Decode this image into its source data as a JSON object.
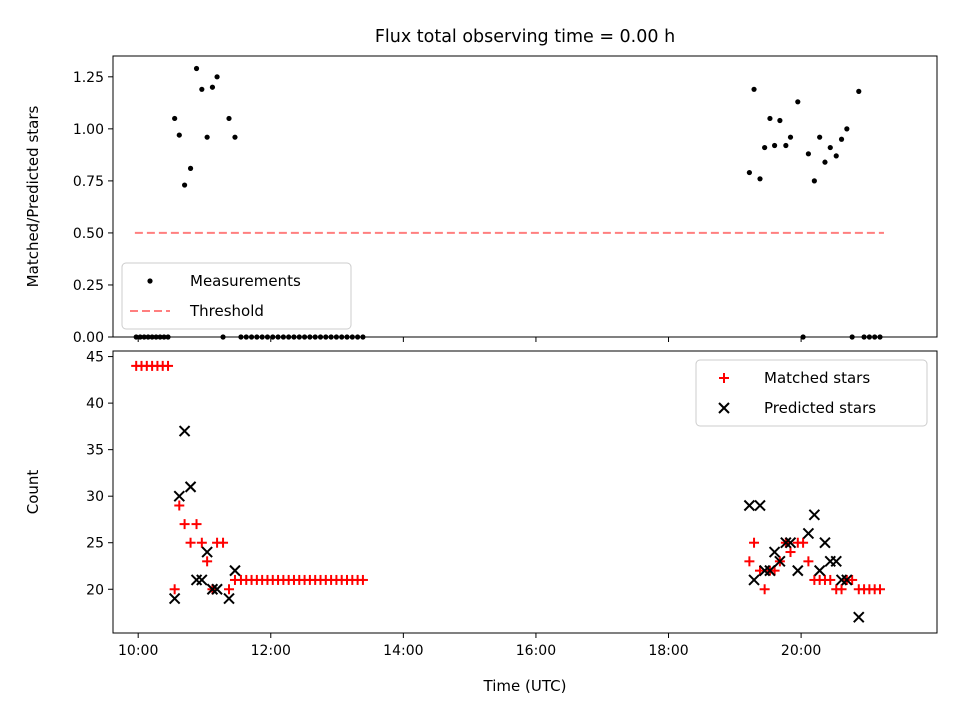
{
  "chart_data": {
    "type": "scatter",
    "title": "Flux total observing time = 0.00 h",
    "xlabel": "Time (UTC)",
    "x_unit": "hours (UTC)",
    "x_ticks": [
      "10:00",
      "12:00",
      "14:00",
      "16:00",
      "18:00",
      "20:00"
    ],
    "x_tick_values": [
      10,
      12,
      14,
      16,
      18,
      20
    ],
    "xlim": [
      9.62,
      22.05
    ],
    "panels": [
      {
        "name": "ratio",
        "ylabel": "Matched/Predicted stars",
        "ylim": [
          0,
          1.35
        ],
        "y_ticks": [
          "0.00",
          "0.25",
          "0.50",
          "0.75",
          "1.00",
          "1.25"
        ],
        "y_tick_values": [
          0,
          0.25,
          0.5,
          0.75,
          1.0,
          1.25
        ],
        "legend": {
          "position": "lower-left",
          "entries": [
            "Measurements",
            "Threshold"
          ]
        },
        "series": [
          {
            "name": "Measurements",
            "marker": "dot",
            "color": "#000000",
            "points": [
              [
                9.97,
                0
              ],
              [
                10.03,
                0
              ],
              [
                10.09,
                0
              ],
              [
                10.15,
                0
              ],
              [
                10.21,
                0
              ],
              [
                10.27,
                0
              ],
              [
                10.33,
                0
              ],
              [
                10.39,
                0
              ],
              [
                10.45,
                0
              ],
              [
                10.55,
                1.05
              ],
              [
                10.62,
                0.97
              ],
              [
                10.7,
                0.73
              ],
              [
                10.79,
                0.81
              ],
              [
                10.88,
                1.29
              ],
              [
                10.96,
                1.19
              ],
              [
                11.04,
                0.96
              ],
              [
                11.12,
                1.2
              ],
              [
                11.19,
                1.25
              ],
              [
                11.28,
                0
              ],
              [
                11.37,
                1.05
              ],
              [
                11.46,
                0.96
              ],
              [
                11.55,
                0
              ],
              [
                11.63,
                0
              ],
              [
                11.71,
                0
              ],
              [
                11.79,
                0
              ],
              [
                11.87,
                0
              ],
              [
                11.95,
                0
              ],
              [
                12.03,
                0
              ],
              [
                12.11,
                0
              ],
              [
                12.19,
                0
              ],
              [
                12.27,
                0
              ],
              [
                12.35,
                0
              ],
              [
                12.43,
                0
              ],
              [
                12.51,
                0
              ],
              [
                12.59,
                0
              ],
              [
                12.67,
                0
              ],
              [
                12.75,
                0
              ],
              [
                12.83,
                0
              ],
              [
                12.91,
                0
              ],
              [
                12.99,
                0
              ],
              [
                13.07,
                0
              ],
              [
                13.15,
                0
              ],
              [
                13.23,
                0
              ],
              [
                13.31,
                0
              ],
              [
                13.39,
                0
              ],
              [
                19.22,
                0.79
              ],
              [
                19.29,
                1.19
              ],
              [
                19.38,
                0.76
              ],
              [
                19.45,
                0.91
              ],
              [
                19.53,
                1.05
              ],
              [
                19.6,
                0.92
              ],
              [
                19.68,
                1.04
              ],
              [
                19.77,
                0.92
              ],
              [
                19.84,
                0.96
              ],
              [
                19.95,
                1.13
              ],
              [
                20.03,
                0
              ],
              [
                20.11,
                0.88
              ],
              [
                20.2,
                0.75
              ],
              [
                20.28,
                0.96
              ],
              [
                20.36,
                0.84
              ],
              [
                20.44,
                0.91
              ],
              [
                20.53,
                0.87
              ],
              [
                20.61,
                0.95
              ],
              [
                20.69,
                1.0
              ],
              [
                20.77,
                0
              ],
              [
                20.87,
                1.18
              ],
              [
                20.95,
                0
              ],
              [
                21.03,
                0
              ],
              [
                21.11,
                0
              ],
              [
                21.19,
                0
              ]
            ]
          },
          {
            "name": "Threshold",
            "style": "dashed",
            "color": "#ff7f7f",
            "x": [
              9.95,
              21.25
            ],
            "y": [
              0.5,
              0.5
            ]
          }
        ]
      },
      {
        "name": "counts",
        "ylabel": "Count",
        "ylim": [
          15.3,
          45.6
        ],
        "y_ticks": [
          "20",
          "25",
          "30",
          "35",
          "40",
          "45"
        ],
        "y_tick_values": [
          20,
          25,
          30,
          35,
          40,
          45
        ],
        "legend": {
          "position": "upper-right",
          "entries": [
            "Matched stars",
            "Predicted stars"
          ]
        },
        "series": [
          {
            "name": "Matched stars",
            "marker": "plus",
            "color": "#ff0000",
            "points": [
              [
                9.97,
                44
              ],
              [
                10.05,
                44
              ],
              [
                10.13,
                44
              ],
              [
                10.21,
                44
              ],
              [
                10.29,
                44
              ],
              [
                10.37,
                44
              ],
              [
                10.45,
                44
              ],
              [
                10.55,
                20
              ],
              [
                10.62,
                29
              ],
              [
                10.7,
                27
              ],
              [
                10.79,
                25
              ],
              [
                10.88,
                27
              ],
              [
                10.96,
                25
              ],
              [
                11.04,
                23
              ],
              [
                11.12,
                20
              ],
              [
                11.19,
                25
              ],
              [
                11.28,
                25
              ],
              [
                11.37,
                20
              ],
              [
                11.46,
                21
              ],
              [
                11.55,
                21
              ],
              [
                11.63,
                21
              ],
              [
                11.71,
                21
              ],
              [
                11.79,
                21
              ],
              [
                11.87,
                21
              ],
              [
                11.95,
                21
              ],
              [
                12.03,
                21
              ],
              [
                12.11,
                21
              ],
              [
                12.19,
                21
              ],
              [
                12.27,
                21
              ],
              [
                12.35,
                21
              ],
              [
                12.43,
                21
              ],
              [
                12.51,
                21
              ],
              [
                12.59,
                21
              ],
              [
                12.67,
                21
              ],
              [
                12.75,
                21
              ],
              [
                12.83,
                21
              ],
              [
                12.91,
                21
              ],
              [
                12.99,
                21
              ],
              [
                13.07,
                21
              ],
              [
                13.15,
                21
              ],
              [
                13.23,
                21
              ],
              [
                13.31,
                21
              ],
              [
                13.39,
                21
              ],
              [
                19.22,
                23
              ],
              [
                19.29,
                25
              ],
              [
                19.38,
                22
              ],
              [
                19.45,
                20
              ],
              [
                19.53,
                22
              ],
              [
                19.6,
                22
              ],
              [
                19.68,
                23
              ],
              [
                19.77,
                25
              ],
              [
                19.84,
                24
              ],
              [
                19.95,
                25
              ],
              [
                20.03,
                25
              ],
              [
                20.11,
                23
              ],
              [
                20.2,
                21
              ],
              [
                20.28,
                21
              ],
              [
                20.36,
                21
              ],
              [
                20.44,
                21
              ],
              [
                20.53,
                20
              ],
              [
                20.61,
                20
              ],
              [
                20.69,
                21
              ],
              [
                20.77,
                21
              ],
              [
                20.87,
                20
              ],
              [
                20.95,
                20
              ],
              [
                21.03,
                20
              ],
              [
                21.11,
                20
              ],
              [
                21.19,
                20
              ]
            ]
          },
          {
            "name": "Predicted stars",
            "marker": "x",
            "color": "#000000",
            "points": [
              [
                10.55,
                19
              ],
              [
                10.62,
                30
              ],
              [
                10.7,
                37
              ],
              [
                10.79,
                31
              ],
              [
                10.88,
                21
              ],
              [
                10.96,
                21
              ],
              [
                11.04,
                24
              ],
              [
                11.12,
                20
              ],
              [
                11.19,
                20
              ],
              [
                11.37,
                19
              ],
              [
                11.46,
                22
              ],
              [
                19.22,
                29
              ],
              [
                19.29,
                21
              ],
              [
                19.38,
                29
              ],
              [
                19.45,
                22
              ],
              [
                19.53,
                22
              ],
              [
                19.6,
                24
              ],
              [
                19.68,
                23
              ],
              [
                19.77,
                25
              ],
              [
                19.84,
                25
              ],
              [
                19.95,
                22
              ],
              [
                20.11,
                26
              ],
              [
                20.2,
                28
              ],
              [
                20.28,
                22
              ],
              [
                20.36,
                25
              ],
              [
                20.44,
                23
              ],
              [
                20.53,
                23
              ],
              [
                20.61,
                21
              ],
              [
                20.69,
                21
              ],
              [
                20.87,
                17
              ]
            ]
          }
        ]
      }
    ]
  }
}
